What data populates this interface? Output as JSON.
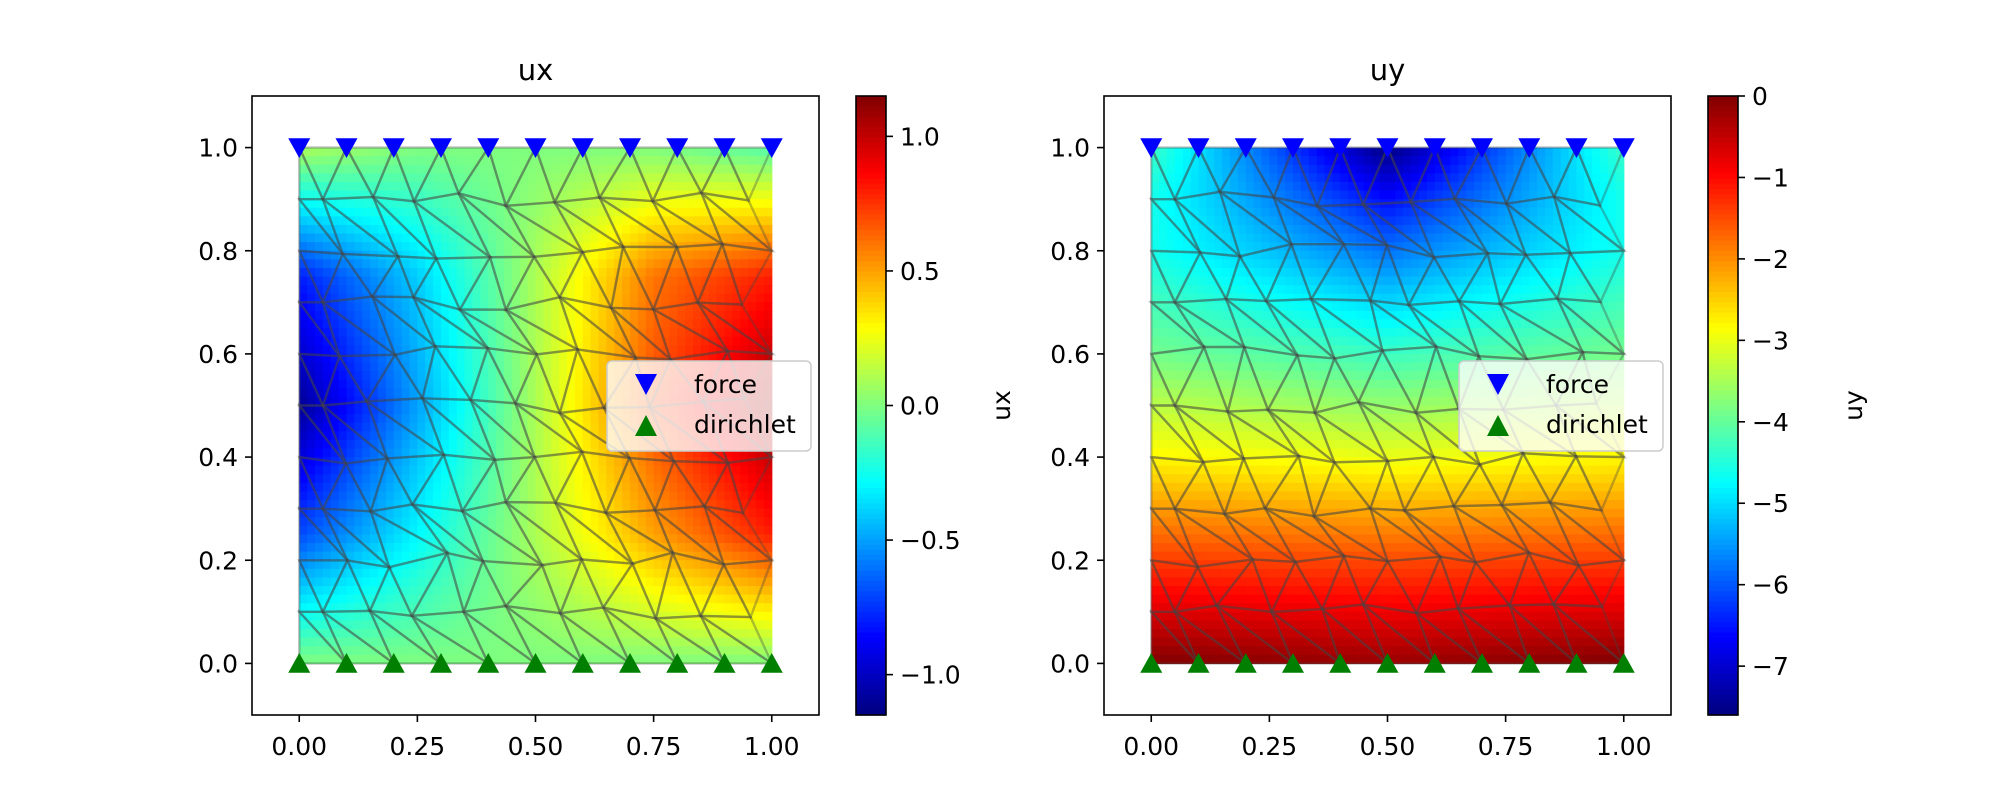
{
  "chart_data": [
    {
      "type": "heatmap",
      "field": "ux",
      "title": "ux",
      "colorbar_label": "ux",
      "colormap": "jet",
      "value_range": [
        -1.15,
        1.15
      ],
      "colorbar_ticks": [
        -1.0,
        -0.5,
        0.0,
        0.5,
        1.0
      ],
      "colorbar_tick_labels": [
        "−1.0",
        "−0.5",
        "0.0",
        "0.5",
        "1.0"
      ],
      "xlim": [
        -0.1,
        1.1
      ],
      "ylim": [
        -0.1,
        1.1
      ],
      "x_ticks": [
        0.0,
        0.25,
        0.5,
        0.75,
        1.0
      ],
      "x_tick_labels": [
        "0.00",
        "0.25",
        "0.50",
        "0.75",
        "1.00"
      ],
      "y_ticks": [
        0.0,
        0.2,
        0.4,
        0.6,
        0.8,
        1.0
      ],
      "y_tick_labels": [
        "0.0",
        "0.2",
        "0.4",
        "0.6",
        "0.8",
        "1.0"
      ],
      "grid": false,
      "mesh": "triangular",
      "field_samples": {
        "note": "",
        "x": [
          0.0,
          0.25,
          0.5,
          0.75,
          1.0
        ],
        "y": [
          0.0,
          0.25,
          0.5,
          0.75,
          1.0
        ],
        "values": [
          [
            0.0,
            0.0,
            0.0,
            0.0,
            0.0
          ],
          [
            -0.7,
            -0.3,
            0.1,
            0.5,
            0.8
          ],
          [
            -1.1,
            -0.5,
            0.1,
            0.7,
            1.1
          ],
          [
            -0.8,
            -0.4,
            0.1,
            0.6,
            0.8
          ],
          [
            0.1,
            0.0,
            0.0,
            0.0,
            -0.1
          ]
        ]
      },
      "markers": {
        "force": {
          "marker": "triangle-down",
          "color": "#0000ff",
          "y": 1.0,
          "x": [
            0.0,
            0.1,
            0.2,
            0.3,
            0.4,
            0.5,
            0.6,
            0.7,
            0.8,
            0.9,
            1.0
          ]
        },
        "dirichlet": {
          "marker": "triangle-up",
          "color": "#007f00",
          "y": 0.0,
          "x": [
            0.0,
            0.1,
            0.2,
            0.3,
            0.4,
            0.5,
            0.6,
            0.7,
            0.8,
            0.9,
            1.0
          ]
        }
      },
      "legend": {
        "entries": [
          "force",
          "dirichlet"
        ],
        "placement": "center-right"
      }
    },
    {
      "type": "heatmap",
      "field": "uy",
      "title": "uy",
      "colorbar_label": "uy",
      "colormap": "jet",
      "value_range": [
        -7.6,
        0.0
      ],
      "colorbar_ticks": [
        0,
        -1,
        -2,
        -3,
        -4,
        -5,
        -6,
        -7
      ],
      "colorbar_tick_labels": [
        "0",
        "−1",
        "−2",
        "−3",
        "−4",
        "−5",
        "−6",
        "−7"
      ],
      "xlim": [
        -0.1,
        1.1
      ],
      "ylim": [
        -0.1,
        1.1
      ],
      "x_ticks": [
        0.0,
        0.25,
        0.5,
        0.75,
        1.0
      ],
      "x_tick_labels": [
        "0.00",
        "0.25",
        "0.50",
        "0.75",
        "1.00"
      ],
      "y_ticks": [
        0.0,
        0.2,
        0.4,
        0.6,
        0.8,
        1.0
      ],
      "y_tick_labels": [
        "0.0",
        "0.2",
        "0.4",
        "0.6",
        "0.8",
        "1.0"
      ],
      "grid": false,
      "mesh": "triangular",
      "field_samples": {
        "x": [
          0.0,
          0.5,
          1.0
        ],
        "y": [
          0.0,
          0.2,
          0.4,
          0.6,
          0.8,
          0.9,
          1.0
        ],
        "values": [
          [
            0.0,
            -0.2,
            0.0
          ],
          [
            -1.4,
            -1.5,
            -1.4
          ],
          [
            -2.8,
            -3.0,
            -2.8
          ],
          [
            -3.9,
            -4.3,
            -3.9
          ],
          [
            -4.6,
            -5.8,
            -4.6
          ],
          [
            -4.6,
            -6.6,
            -4.6
          ],
          [
            -4.3,
            -7.6,
            -4.3
          ]
        ]
      },
      "markers": {
        "force": {
          "marker": "triangle-down",
          "color": "#0000ff",
          "y": 1.0,
          "x": [
            0.0,
            0.1,
            0.2,
            0.3,
            0.4,
            0.5,
            0.6,
            0.7,
            0.8,
            0.9,
            1.0
          ]
        },
        "dirichlet": {
          "marker": "triangle-up",
          "color": "#007f00",
          "y": 0.0,
          "x": [
            0.0,
            0.1,
            0.2,
            0.3,
            0.4,
            0.5,
            0.6,
            0.7,
            0.8,
            0.9,
            1.0
          ]
        }
      },
      "legend": {
        "entries": [
          "force",
          "dirichlet"
        ],
        "placement": "center-right"
      }
    }
  ]
}
